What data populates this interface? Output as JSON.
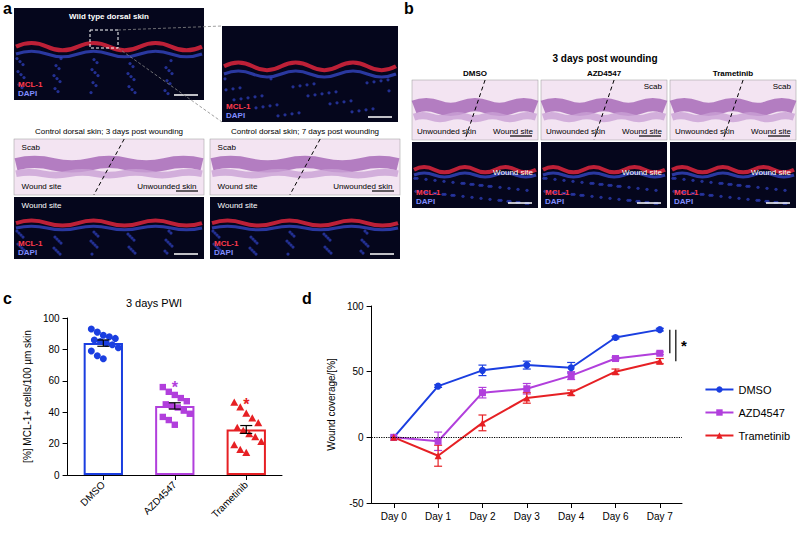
{
  "figure": {
    "panel_letters": [
      "a",
      "b",
      "c",
      "d"
    ],
    "a": {
      "wild_type": {
        "title": "Wild type dorsal skin",
        "channels": [
          "MCL-1",
          "DAPI"
        ]
      },
      "zoom": {
        "channels": [
          "MCL-1",
          "DAPI"
        ]
      },
      "controls": [
        {
          "title": "Control dorsal skin; 3 days post wounding",
          "he_labels": [
            "Scab",
            "Wound site",
            "Unwounded skin"
          ],
          "if_labels": [
            "Wound site"
          ],
          "channels": [
            "MCL-1",
            "DAPI"
          ]
        },
        {
          "title": "Control dorsal skin; 7 days post wounding",
          "he_labels": [
            "Scab",
            "Wound site",
            "Unwounded skin"
          ],
          "if_labels": [
            "Wound site"
          ],
          "channels": [
            "MCL-1",
            "DAPI"
          ]
        }
      ]
    },
    "b": {
      "title": "3 days post wounding",
      "columns": [
        {
          "title": "DMSO",
          "he_labels": [
            "Unwounded skin",
            "Wound site"
          ],
          "if_labels": [
            "Wound site"
          ],
          "channels": [
            "MCL-1",
            "DAPI"
          ]
        },
        {
          "title": "AZD4547",
          "he_labels": [
            "Unwounded skin",
            "Wound site",
            "Scab"
          ],
          "if_labels": [
            "Wound site"
          ],
          "channels": [
            "MCL-1",
            "DAPI"
          ]
        },
        {
          "title": "Trametinib",
          "he_labels": [
            "Unwounded skin",
            "Wound site",
            "Scab"
          ],
          "if_labels": [
            "Wound site"
          ],
          "channels": [
            "MCL-1",
            "DAPI"
          ]
        }
      ]
    }
  },
  "chart_data": [
    {
      "type": "bar",
      "title": "3 days PWI",
      "y_label": "[%] MCL-1+ cells/100 µm skin",
      "categories": [
        "DMSO",
        "AZD4547",
        "Trametinib"
      ],
      "values": [
        84,
        44,
        29
      ],
      "errors": [
        2,
        2,
        2.5
      ],
      "colors": [
        "#1a3ee0",
        "#b13fdc",
        "#e62024"
      ],
      "markers": [
        "circle",
        "square",
        "triangle"
      ],
      "points": [
        [
          93,
          91,
          89,
          88,
          87,
          86,
          85,
          84,
          83,
          81,
          79,
          76,
          74
        ],
        [
          56,
          53,
          51,
          49,
          47,
          45,
          44,
          43,
          41,
          39,
          37,
          35,
          32
        ],
        [
          46,
          43,
          39,
          36,
          33,
          30,
          28,
          26,
          24,
          21,
          19,
          16,
          14
        ]
      ],
      "annotations": [
        {
          "text": "*",
          "category": "AZD4547",
          "y": 56
        },
        {
          "text": "*",
          "category": "Trametinib",
          "y": 45
        }
      ],
      "ylim": [
        0,
        100
      ],
      "yticks": [
        0,
        20,
        40,
        60,
        80,
        100
      ],
      "grid": false
    },
    {
      "type": "line",
      "y_label": "Wound coverage/[%]",
      "categories": [
        "Day 0",
        "Day 1",
        "Day 2",
        "Day 3",
        "Day 4",
        "Day 6",
        "Day 7"
      ],
      "series": [
        {
          "name": "DMSO",
          "color": "#1a3ee0",
          "marker": "circle",
          "values": [
            0,
            39,
            51,
            55,
            53,
            76,
            82
          ],
          "errors": [
            0,
            1,
            4,
            3,
            4,
            1,
            1
          ]
        },
        {
          "name": "AZD4547",
          "color": "#b13fdc",
          "marker": "square",
          "values": [
            0,
            -3,
            34,
            37,
            47,
            60,
            64
          ],
          "errors": [
            0,
            7,
            4,
            4,
            3,
            1,
            1
          ]
        },
        {
          "name": "Trametinib",
          "color": "#e62024",
          "marker": "triangle",
          "values": [
            0,
            -14,
            11,
            30,
            34,
            50,
            58
          ],
          "errors": [
            0,
            8,
            6,
            4,
            2,
            2,
            2
          ]
        }
      ],
      "reference_lines": [
        0
      ],
      "significance": {
        "text": "*",
        "brackets": [
          [
            82,
            64
          ],
          [
            82,
            58
          ]
        ]
      },
      "ylim": [
        -50,
        100
      ],
      "yticks": [
        -50,
        0,
        50,
        100
      ],
      "legend": "right",
      "grid": false
    }
  ]
}
